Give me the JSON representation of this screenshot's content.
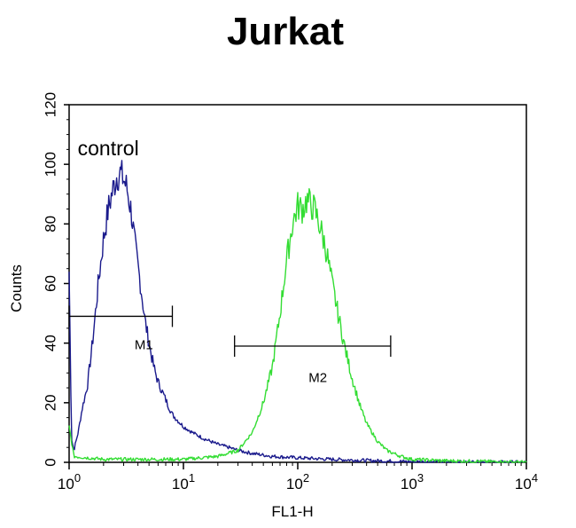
{
  "chart_data": {
    "type": "line",
    "title": "Jurkat",
    "xlabel": "FL1-H",
    "ylabel": "Counts",
    "x_scale": "log",
    "xlim": [
      1,
      10000
    ],
    "ylim": [
      0,
      120
    ],
    "x_ticks": [
      {
        "value": 1,
        "base": "10",
        "exp": "0"
      },
      {
        "value": 10,
        "base": "10",
        "exp": "1"
      },
      {
        "value": 100,
        "base": "10",
        "exp": "2"
      },
      {
        "value": 1000,
        "base": "10",
        "exp": "3"
      },
      {
        "value": 10000,
        "base": "10",
        "exp": "4"
      }
    ],
    "y_ticks": [
      "0",
      "20",
      "40",
      "60",
      "80",
      "100",
      "120"
    ],
    "grid": false,
    "series": [
      {
        "color": "#1a1a8c",
        "x": [
          1.0,
          1.05,
          1.1,
          1.2,
          1.3,
          1.45,
          1.6,
          1.8,
          2.0,
          2.2,
          2.4,
          2.6,
          2.8,
          3.0,
          3.2,
          3.5,
          3.8,
          4.2,
          4.6,
          5.0,
          5.5,
          6.0,
          7.0,
          8.0,
          10.0,
          12.0,
          15.0,
          20.0,
          25.0,
          30.0,
          40.0,
          60.0,
          100.0,
          200.0,
          500.0,
          1000.0,
          10000.0
        ],
        "y": [
          64,
          8,
          4,
          10,
          18,
          26,
          40,
          60,
          75,
          85,
          91,
          96,
          97,
          95,
          92,
          84,
          72,
          60,
          48,
          40,
          32,
          27,
          21,
          16,
          12,
          10,
          8,
          6,
          5,
          4,
          3,
          2,
          1.5,
          1,
          0.5,
          0.2,
          0
        ]
      },
      {
        "color": "#33dd33",
        "x": [
          1.0,
          1.1,
          2.0,
          5.0,
          10.0,
          20.0,
          30.0,
          40.0,
          50.0,
          60.0,
          70.0,
          80.0,
          90.0,
          100.0,
          110.0,
          120.0,
          140.0,
          160.0,
          180.0,
          200.0,
          230.0,
          260.0,
          300.0,
          350.0,
          400.0,
          500.0,
          600.0,
          800.0,
          1000.0,
          2000.0,
          10000.0
        ],
        "y": [
          12,
          2,
          1,
          1,
          1,
          2,
          4,
          10,
          20,
          32,
          50,
          68,
          80,
          86,
          85,
          88,
          85,
          78,
          70,
          60,
          48,
          38,
          28,
          19,
          13,
          7,
          4,
          2,
          1,
          0.5,
          0
        ]
      }
    ],
    "annotations": [
      {
        "text": "control",
        "x": 2.2,
        "y": 103
      },
      {
        "text": "M1",
        "x": 4.5,
        "y": 38
      },
      {
        "text": "M2",
        "x": 150,
        "y": 27
      }
    ],
    "markers": [
      {
        "label": "M1",
        "x1": 1,
        "x2": 8,
        "y": 49
      },
      {
        "label": "M2",
        "x1": 28,
        "x2": 650,
        "y": 39
      }
    ]
  }
}
